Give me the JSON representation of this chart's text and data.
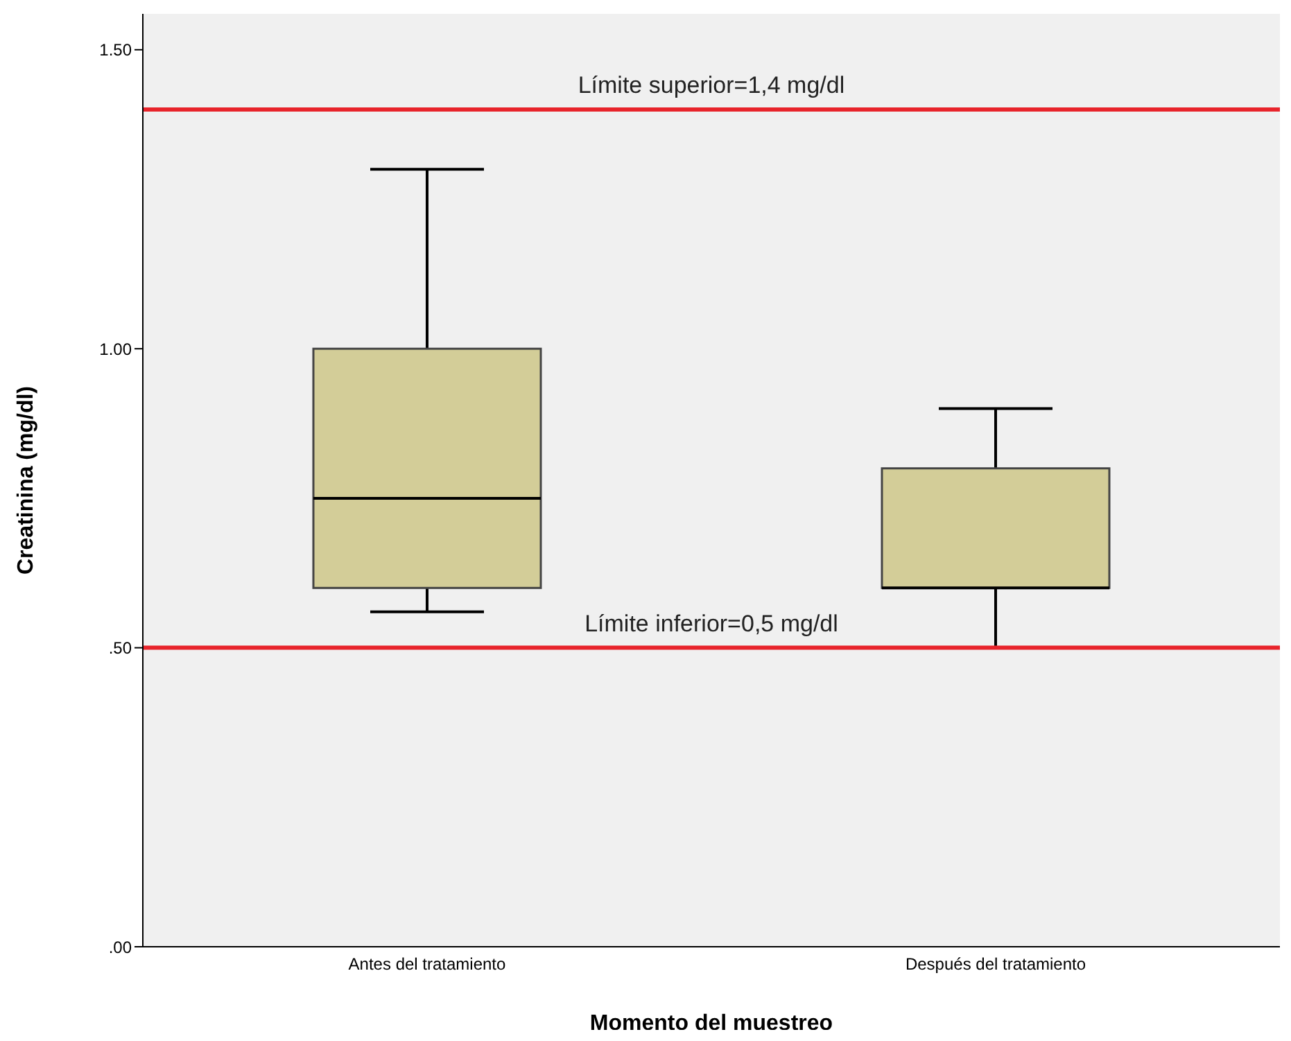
{
  "chart_data": {
    "type": "box",
    "xlabel": "Momento del muestreo",
    "ylabel": "Creatinina (mg/dl)",
    "categories": [
      "Antes del tratamiento",
      "Después del tratamiento"
    ],
    "color": "#d3cd98",
    "boxes": [
      {
        "low": 0.56,
        "q1": 0.6,
        "median": 0.75,
        "q3": 1.0,
        "high": 1.3
      },
      {
        "low": 0.5,
        "q1": 0.6,
        "median": 0.6,
        "q3": 0.8,
        "high": 0.9
      }
    ],
    "ylim": [
      0,
      1.56
    ],
    "yticks": [
      {
        "value": 0,
        "label": ".00"
      },
      {
        "value": 0.5,
        "label": ".50"
      },
      {
        "value": 1,
        "label": "1.00"
      },
      {
        "value": 1.5,
        "label": "1.50"
      }
    ],
    "ref_lines": [
      {
        "axis": "y",
        "value": 1.4,
        "label": "Límite superior=1,4 mg/dl",
        "color": "#e8242b"
      },
      {
        "axis": "y",
        "value": 0.5,
        "label": "Límite inferior=0,5 mg/dl",
        "color": "#e8242b"
      }
    ]
  }
}
